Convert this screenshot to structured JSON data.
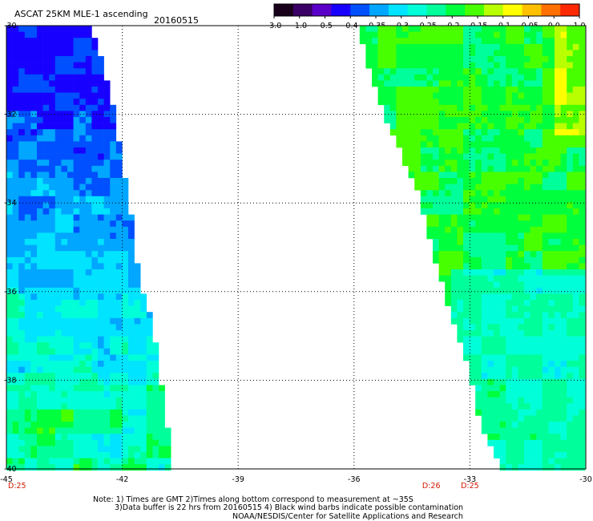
{
  "header": {
    "title": "ASCAT 25KM MLE-1 ascending",
    "date": "20160515"
  },
  "colorbar": {
    "tick_labels": [
      "-3.0",
      "-1.0",
      "-0.5",
      "-0.4",
      "-0.35",
      "-0.3",
      "-0.25",
      "-0.2",
      "-0.15",
      "-0.1",
      "-0.05",
      "0.0",
      "1.0"
    ],
    "colors": [
      "#18001a",
      "#3a0066",
      "#5a00c8",
      "#1800ff",
      "#0050ff",
      "#00a6ff",
      "#00e4ff",
      "#00ffd8",
      "#00ff9a",
      "#00ff3c",
      "#48ff00",
      "#b8ff00",
      "#ffff00",
      "#ffc000",
      "#ff7000",
      "#ff2800"
    ]
  },
  "chart_data": {
    "type": "heatmap",
    "title": "ASCAT 25KM MLE-1 ascending",
    "xlim": [
      -45,
      -30
    ],
    "ylim": [
      -40,
      -30
    ],
    "x_ticks": [
      "-45",
      "-42",
      "-39",
      "-36",
      "-33",
      "-30"
    ],
    "y_ticks": [
      "-30",
      "-32",
      "-34",
      "-36",
      "-38",
      "-40"
    ],
    "time_labels": [
      {
        "lon": -45,
        "text": "D:25"
      },
      {
        "lon": -34,
        "text": "D:26"
      },
      {
        "lon": -33,
        "text": "D:25"
      }
    ],
    "grid": true,
    "swaths": [
      {
        "name": "west",
        "dominant_range": [
          -0.45,
          -0.2
        ],
        "boundary_polygon": [
          [
            -45,
            -30
          ],
          [
            -42.8,
            -30
          ],
          [
            -42.3,
            -31.5
          ],
          [
            -42,
            -33
          ],
          [
            -41.8,
            -34
          ],
          [
            -41.6,
            -35.5
          ],
          [
            -41.2,
            -36.8
          ],
          [
            -40.9,
            -38.5
          ],
          [
            -40.7,
            -40
          ],
          [
            -45,
            -40
          ]
        ]
      },
      {
        "name": "east",
        "dominant_range": [
          -0.3,
          -0.1
        ],
        "boundary_polygon": [
          [
            -35.9,
            -30
          ],
          [
            -30,
            -30
          ],
          [
            -30,
            -40
          ],
          [
            -32.2,
            -40
          ],
          [
            -32.8,
            -38.8
          ],
          [
            -33,
            -37.8
          ],
          [
            -33.5,
            -36.5
          ],
          [
            -34,
            -35
          ],
          [
            -34.3,
            -33.8
          ],
          [
            -35,
            -32.5
          ],
          [
            -35.6,
            -31
          ]
        ]
      }
    ]
  },
  "notes": {
    "line1": "Note: 1) Times are GMT 2)Times along bottom correspond to measurement at ~35S",
    "line2": "3)Data buffer is 22 hrs from 20160515 4) Black wind barbs indicate possible contamination",
    "line3": "NOAA/NESDIS/Center for Satellite Applications and Research"
  }
}
